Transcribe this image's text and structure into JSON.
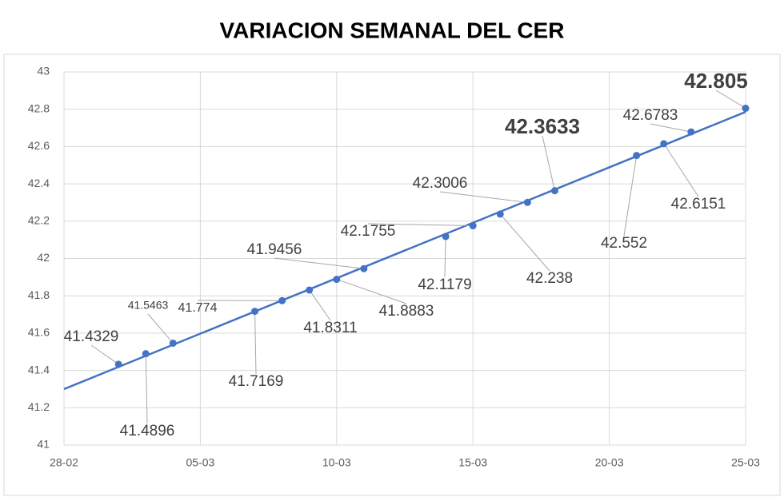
{
  "chart_data": {
    "type": "line",
    "title": "VARIACION SEMANAL DEL CER",
    "x": [
      "02-03",
      "03-03",
      "04-03",
      "07-03",
      "08-03",
      "09-03",
      "10-03",
      "11-03",
      "14-03",
      "15-03",
      "16-03",
      "17-03",
      "18-03",
      "21-03",
      "22-03",
      "23-03",
      "25-03"
    ],
    "series": [
      {
        "name": "CER",
        "color": "#4472c4",
        "values": [
          41.4329,
          41.4896,
          41.5463,
          41.7169,
          41.774,
          41.8311,
          41.8883,
          41.9456,
          42.1179,
          42.1755,
          42.238,
          42.3006,
          42.3633,
          42.552,
          42.6151,
          42.6783,
          42.805
        ]
      }
    ],
    "xlim": [
      "28-02",
      "25-03"
    ],
    "xticks": [
      "28-02",
      "05-03",
      "10-03",
      "15-03",
      "20-03",
      "25-03"
    ],
    "ylim": [
      41,
      43
    ],
    "yticks": [
      41,
      41.2,
      41.4,
      41.6,
      41.8,
      42,
      42.2,
      42.4,
      42.6,
      42.8,
      43
    ],
    "grid": true,
    "trendline": true
  }
}
